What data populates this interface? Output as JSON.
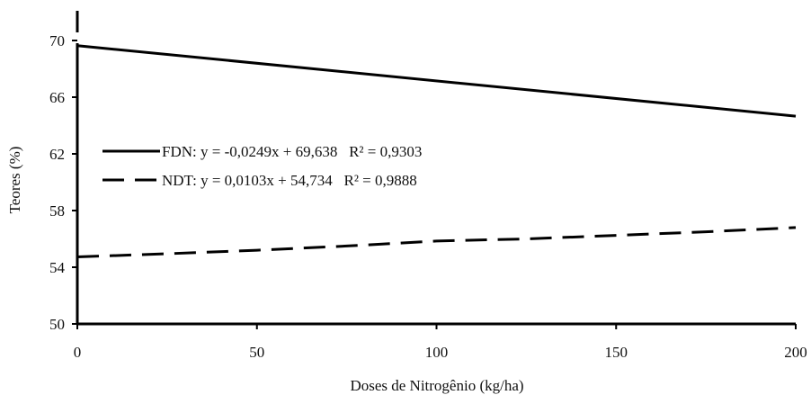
{
  "chart_data": {
    "type": "line",
    "xlabel": "Doses de Nitrogênio (kg/ha)",
    "ylabel": "Teores (%)",
    "xlim": [
      0,
      200
    ],
    "ylim": [
      50,
      70
    ],
    "y_axis_break": true,
    "x_ticks": [
      0,
      50,
      100,
      150,
      200
    ],
    "x_tick_labels": [
      "0",
      "50",
      "100",
      "150",
      "200"
    ],
    "y_ticks": [
      50,
      54,
      58,
      62,
      66,
      70
    ],
    "y_tick_labels": [
      "50",
      "54",
      "58",
      "62",
      "66",
      "70"
    ],
    "grid": false,
    "legend_position": "center-left",
    "series": [
      {
        "name": "FDN",
        "legend_label": "FDN: y = -0,0249x + 69,638   R² = 0,9303",
        "style": "solid",
        "color": "#000000",
        "x": [
          0,
          200
        ],
        "y": [
          69.638,
          64.658
        ]
      },
      {
        "name": "NDT",
        "legend_label": "NDT: y = 0,0103x + 54,734   R² = 0,9888",
        "style": "dashed",
        "color": "#000000",
        "x": [
          0,
          25,
          50,
          75,
          100,
          125,
          150,
          175,
          200
        ],
        "y": [
          54.73,
          54.95,
          55.2,
          55.5,
          55.85,
          56.0,
          56.25,
          56.5,
          56.8
        ]
      }
    ]
  }
}
